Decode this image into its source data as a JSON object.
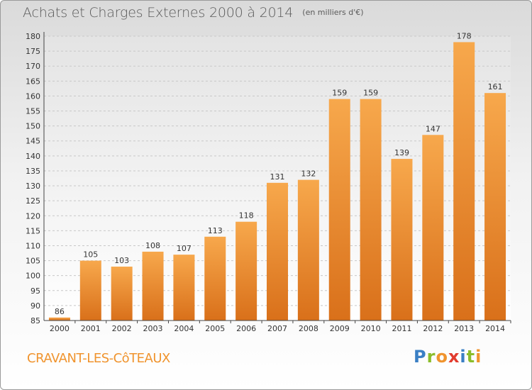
{
  "header": {
    "title": "Achats et Charges Externes 2000 à 2014",
    "subtitle": "(en milliers d'€)"
  },
  "footer": {
    "commune": "CRAVANT-LES-CôTEAUX",
    "logo_letters": [
      "P",
      "r",
      "o",
      "x",
      "i",
      "t",
      "i"
    ],
    "logo_colors": [
      "#3a7fc4",
      "#8bbd2a",
      "#f0942e",
      "#e23c2e",
      "#3a7fc4",
      "#8bbd2a",
      "#f0942e"
    ]
  },
  "chart_data": {
    "type": "bar",
    "title": "Achats et Charges Externes 2000 à 2014",
    "subtitle": "(en milliers d'€)",
    "categories": [
      "2000",
      "2001",
      "2002",
      "2003",
      "2004",
      "2005",
      "2006",
      "2007",
      "2008",
      "2009",
      "2010",
      "2011",
      "2012",
      "2013",
      "2014"
    ],
    "values": [
      86,
      105,
      103,
      108,
      107,
      113,
      118,
      131,
      132,
      159,
      159,
      139,
      147,
      178,
      161
    ],
    "ylim": [
      85,
      180
    ],
    "yticks": [
      85,
      90,
      95,
      100,
      105,
      110,
      115,
      120,
      125,
      130,
      135,
      140,
      145,
      150,
      155,
      160,
      165,
      170,
      175,
      180
    ],
    "grid": true,
    "bar_color": "#f0942e"
  }
}
